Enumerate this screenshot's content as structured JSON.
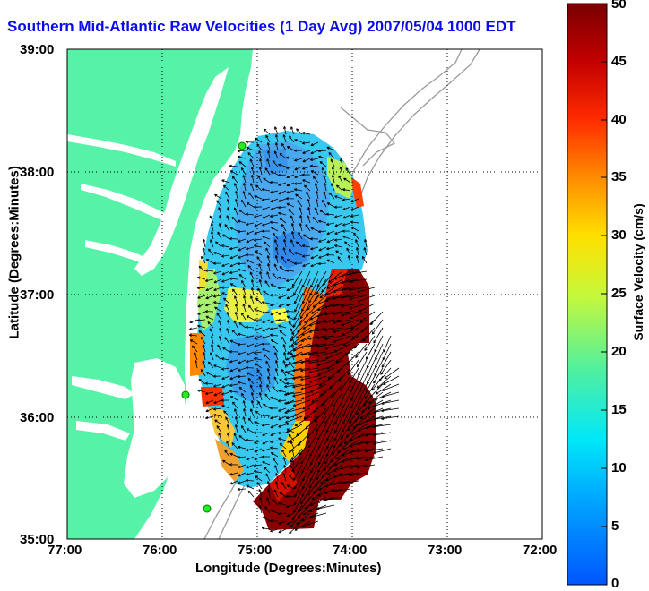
{
  "title": "Southern Mid-Atlantic Raw Velocities (1 Day Avg) 2007/05/04 1000 EDT",
  "xlabel": "Longitude (Degrees:Minutes)",
  "ylabel": "Latitude (Degrees:Minutes)",
  "colorbar": {
    "label": "Surface Velocity (cm/s)",
    "range": [
      0,
      50
    ],
    "ticks": [
      "0",
      "5",
      "10",
      "15",
      "20",
      "25",
      "30",
      "35",
      "40",
      "45",
      "50"
    ]
  },
  "axes": {
    "x_ticks": [
      "77:00",
      "76:00",
      "75:00",
      "74:00",
      "73:00",
      "72:00"
    ],
    "y_ticks": [
      "39:00",
      "38:00",
      "37:00",
      "36:00",
      "35:00"
    ],
    "xlim": [
      -77,
      -72
    ],
    "ylim": [
      35,
      39
    ],
    "grid": "dotted"
  },
  "colors": {
    "land": "#55f2a8",
    "title": "#0b0bf0",
    "axes": "#000000"
  }
}
